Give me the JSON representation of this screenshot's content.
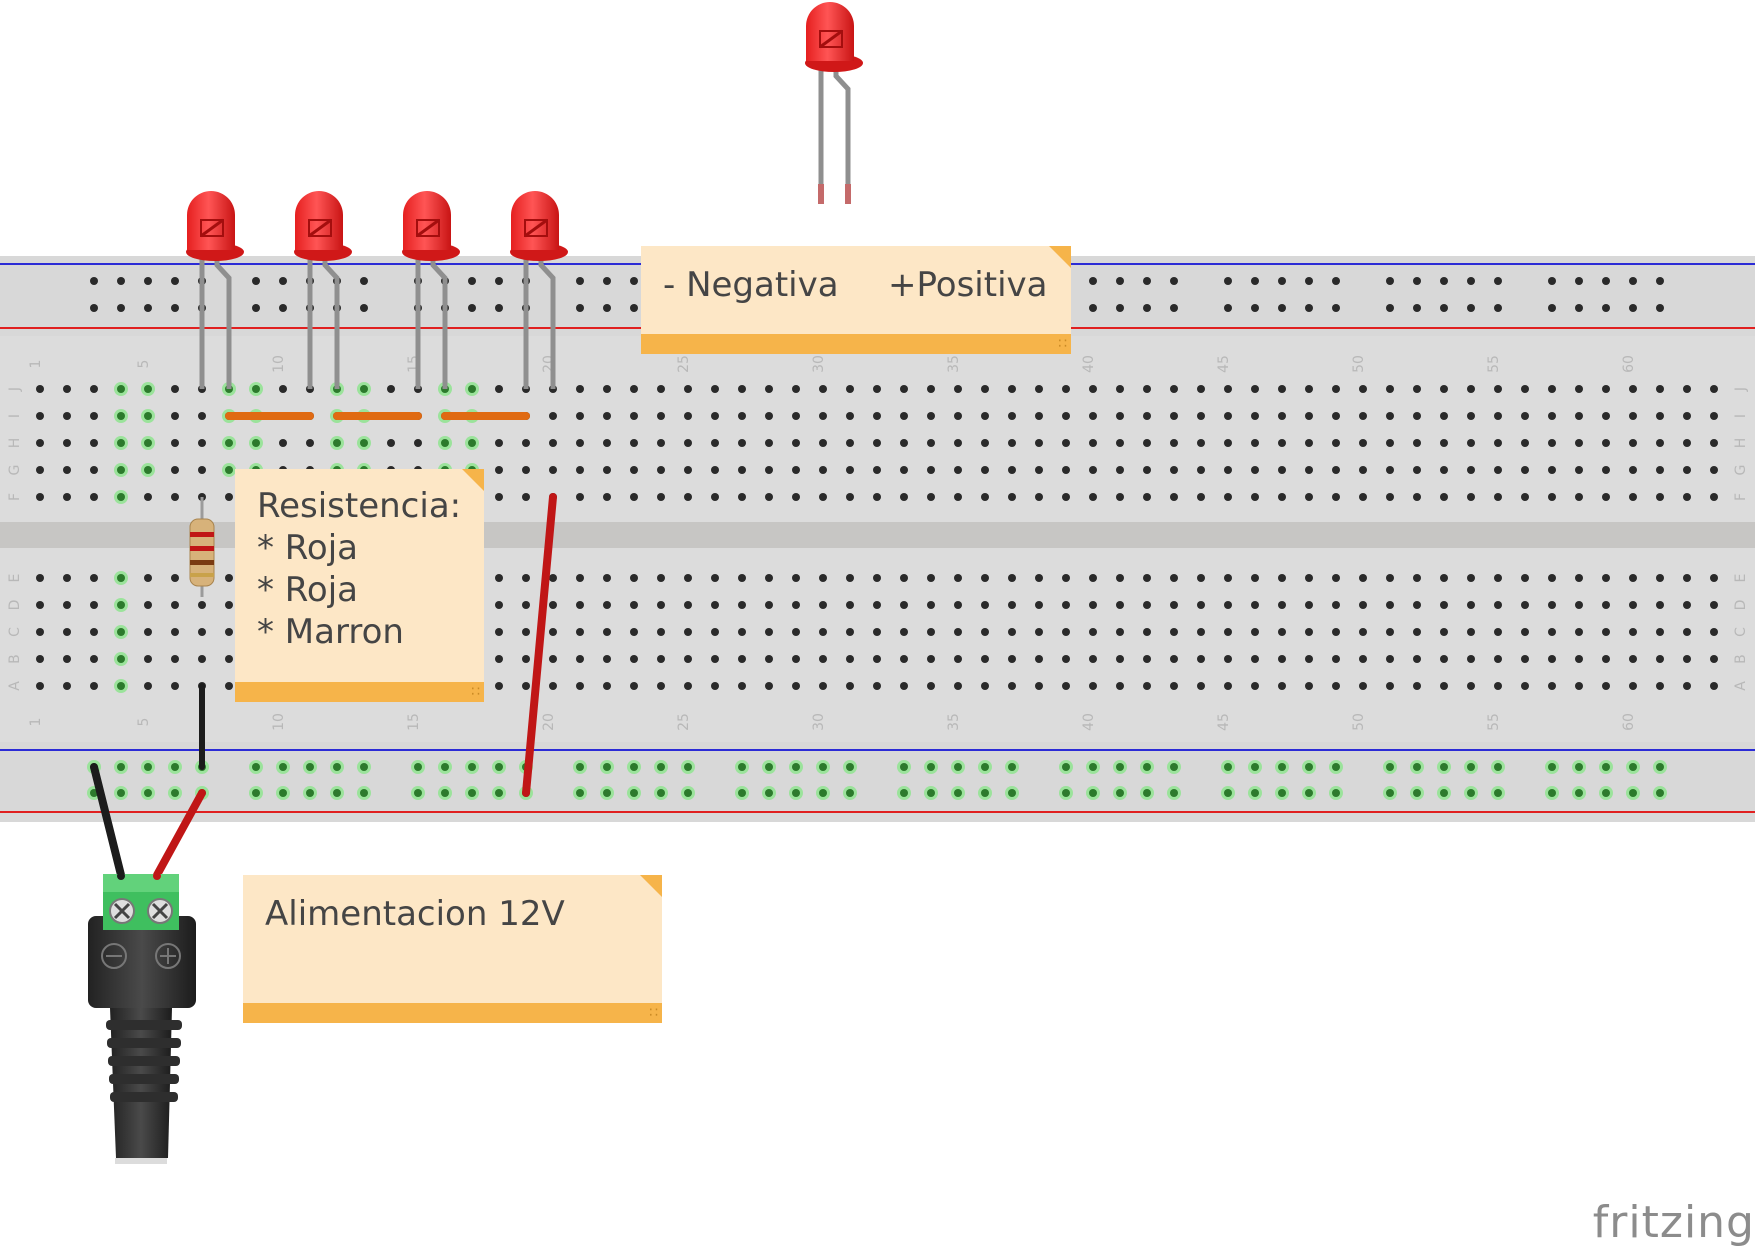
{
  "notes": {
    "polarity": {
      "negative": "- Negativa",
      "positive": "+Positiva"
    },
    "resistor": {
      "title": "Resistencia:",
      "bands": [
        "* Roja",
        "* Roja",
        "* Marron"
      ]
    },
    "power": {
      "text": "Alimentacion 12V"
    }
  },
  "breadboard": {
    "column_numbers": [
      "1",
      "5",
      "10",
      "15",
      "20",
      "25",
      "30",
      "35",
      "40",
      "45",
      "50",
      "55",
      "60"
    ],
    "row_letters_top": [
      "J",
      "I",
      "H",
      "G",
      "F"
    ],
    "row_letters_bottom": [
      "E",
      "D",
      "C",
      "B",
      "A"
    ]
  },
  "components": {
    "leds": [
      {
        "name": "led-1",
        "color": "red"
      },
      {
        "name": "led-2",
        "color": "red"
      },
      {
        "name": "led-3",
        "color": "red"
      },
      {
        "name": "led-4",
        "color": "red"
      },
      {
        "name": "led-reference",
        "color": "red"
      }
    ],
    "resistor_bands": [
      "red",
      "red",
      "brown"
    ],
    "power_jack_terminals": [
      "minus-icon",
      "plus-icon"
    ]
  },
  "colors": {
    "breadboard": "#dcdcdc",
    "rail_blue": "#2b2bd6",
    "rail_red": "#e02020",
    "led_red": "#ee2a2a",
    "wire_orange": "#e06a12",
    "wire_red": "#c01616",
    "wire_black": "#1c1c1c",
    "note_bg": "#fde7c6",
    "note_accent": "#f6b44a"
  },
  "brand": "fritzing"
}
